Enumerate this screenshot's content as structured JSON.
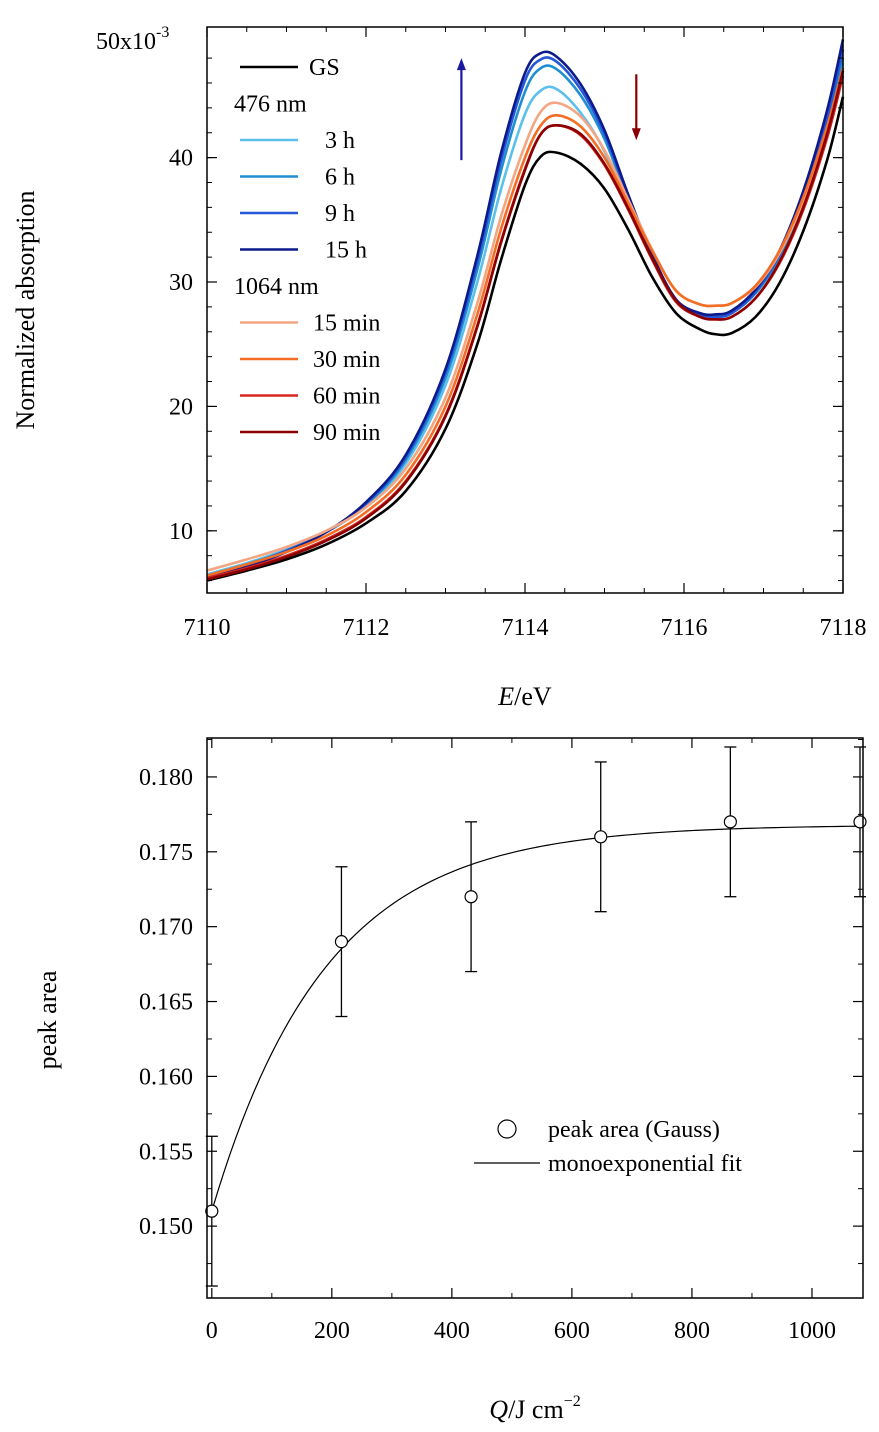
{
  "chart_data": [
    {
      "type": "line",
      "ylabel": "Normalized absorption",
      "xlabel_italic": "E",
      "xlabel_rest": "/eV",
      "y_top_label": "50x10",
      "y_top_exp": "-3",
      "xlim": [
        7110,
        7118
      ],
      "ylim": [
        0.005,
        0.0505
      ],
      "x_ticks": [
        7110,
        7112,
        7114,
        7116,
        7118
      ],
      "y_ticks": [
        {
          "v": 0.01,
          "label": "10"
        },
        {
          "v": 0.02,
          "label": "20"
        },
        {
          "v": 0.03,
          "label": "30"
        },
        {
          "v": 0.04,
          "label": "40"
        }
      ],
      "x": [
        7110.0,
        7110.5,
        7111.0,
        7111.5,
        7112.0,
        7112.5,
        7113.0,
        7113.4,
        7113.7,
        7114.0,
        7114.2,
        7114.4,
        7114.7,
        7115.0,
        7115.3,
        7115.6,
        7115.9,
        7116.2,
        7116.4,
        7116.6,
        7116.9,
        7117.2,
        7117.5,
        7117.8,
        7118.0
      ],
      "legend": {
        "groups": [
          "476 nm",
          "1064 nm"
        ]
      },
      "series": [
        {
          "name": "GS",
          "color": "#000000",
          "y": [
            0.006,
            0.0068,
            0.0077,
            0.0089,
            0.0106,
            0.0132,
            0.0182,
            0.025,
            0.0318,
            0.0378,
            0.0401,
            0.0404,
            0.0395,
            0.0375,
            0.0342,
            0.0304,
            0.0275,
            0.0262,
            0.0258,
            0.0259,
            0.0272,
            0.0299,
            0.0341,
            0.0398,
            0.0449
          ]
        },
        {
          "name": "3 h",
          "color": "#5bc0eb",
          "y": [
            0.0065,
            0.0074,
            0.0085,
            0.0099,
            0.012,
            0.0154,
            0.0217,
            0.03,
            0.0375,
            0.0435,
            0.0454,
            0.0455,
            0.0436,
            0.0405,
            0.036,
            0.0318,
            0.0284,
            0.0274,
            0.0272,
            0.0275,
            0.0291,
            0.032,
            0.0366,
            0.0426,
            0.0476
          ]
        },
        {
          "name": "6 h",
          "color": "#1f8fd1",
          "y": [
            0.0064,
            0.0073,
            0.0084,
            0.0099,
            0.0121,
            0.0157,
            0.0223,
            0.031,
            0.039,
            0.0453,
            0.0472,
            0.0471,
            0.045,
            0.0415,
            0.0366,
            0.032,
            0.0285,
            0.0274,
            0.0272,
            0.0275,
            0.0291,
            0.032,
            0.0366,
            0.0428,
            0.048
          ]
        },
        {
          "name": "9 h",
          "color": "#2557d6",
          "y": [
            0.0063,
            0.0072,
            0.0084,
            0.0099,
            0.0122,
            0.0159,
            0.0227,
            0.0316,
            0.0398,
            0.0462,
            0.0479,
            0.0477,
            0.0455,
            0.0419,
            0.0368,
            0.0321,
            0.0285,
            0.0274,
            0.0272,
            0.0275,
            0.0292,
            0.0322,
            0.0369,
            0.0432,
            0.0487
          ]
        },
        {
          "name": "15 h",
          "color": "#0d1a8c",
          "y": [
            0.0062,
            0.0071,
            0.0083,
            0.0099,
            0.0123,
            0.0161,
            0.023,
            0.0321,
            0.0404,
            0.0468,
            0.0484,
            0.0481,
            0.0459,
            0.0422,
            0.037,
            0.0322,
            0.0286,
            0.0275,
            0.0274,
            0.0277,
            0.0294,
            0.0325,
            0.0373,
            0.0438,
            0.0495
          ]
        },
        {
          "name": "15 min",
          "color": "#f4a582",
          "y": [
            0.0068,
            0.0077,
            0.0087,
            0.01,
            0.0119,
            0.015,
            0.0207,
            0.0283,
            0.0353,
            0.041,
            0.0437,
            0.0444,
            0.0433,
            0.0406,
            0.0366,
            0.0326,
            0.0293,
            0.0282,
            0.0281,
            0.0283,
            0.0296,
            0.0323,
            0.0365,
            0.0421,
            0.0468
          ]
        },
        {
          "name": "30 min",
          "color": "#f46d25",
          "y": [
            0.0064,
            0.0073,
            0.0083,
            0.0096,
            0.0115,
            0.0145,
            0.02,
            0.0274,
            0.0343,
            0.04,
            0.0426,
            0.0434,
            0.0425,
            0.04,
            0.0363,
            0.0325,
            0.0293,
            0.0282,
            0.0281,
            0.0283,
            0.0297,
            0.0325,
            0.0368,
            0.0425,
            0.0472
          ]
        },
        {
          "name": "60 min",
          "color": "#d7261e",
          "y": [
            0.0062,
            0.007,
            0.008,
            0.0093,
            0.0111,
            0.014,
            0.0193,
            0.0265,
            0.0333,
            0.0391,
            0.0419,
            0.0426,
            0.0418,
            0.0394,
            0.0358,
            0.0318,
            0.0284,
            0.0272,
            0.027,
            0.0272,
            0.0287,
            0.0315,
            0.0358,
            0.0416,
            0.0466
          ]
        },
        {
          "name": "90 min",
          "color": "#8b0000",
          "y": [
            0.0061,
            0.0069,
            0.0079,
            0.0092,
            0.011,
            0.0139,
            0.0192,
            0.0264,
            0.0332,
            0.039,
            0.0419,
            0.0426,
            0.0419,
            0.0395,
            0.0359,
            0.0319,
            0.0285,
            0.0272,
            0.027,
            0.0272,
            0.0287,
            0.0316,
            0.036,
            0.0419,
            0.047
          ]
        }
      ],
      "arrows": [
        {
          "color": "#1a1aa0",
          "x": 7113.2,
          "y_from": 0.0398,
          "y_to": 0.048
        },
        {
          "color": "#8b0000",
          "x": 7115.4,
          "y_from": 0.0467,
          "y_to": 0.0414
        }
      ]
    },
    {
      "type": "scatter",
      "ylabel": "peak area",
      "xlabel_italic": "Q",
      "xlabel_rest": "/J cm",
      "xlabel_exp": "−2",
      "xlim": [
        -8,
        1085
      ],
      "ylim": [
        0.1452,
        0.1826
      ],
      "x_ticks": [
        0,
        200,
        400,
        600,
        800,
        1000
      ],
      "y_ticks": [
        0.15,
        0.155,
        0.16,
        0.165,
        0.17,
        0.175,
        0.18
      ],
      "points": {
        "name": "peak area (Gauss)",
        "x": [
          0,
          216,
          432,
          648,
          864,
          1080
        ],
        "y": [
          0.151,
          0.169,
          0.172,
          0.176,
          0.177,
          0.177
        ],
        "err": [
          0.005,
          0.005,
          0.005,
          0.005,
          0.005,
          0.005
        ]
      },
      "fit": {
        "name": "monoexponential fit",
        "y0": 0.151,
        "yinf": 0.1768,
        "tau": 190
      }
    }
  ]
}
